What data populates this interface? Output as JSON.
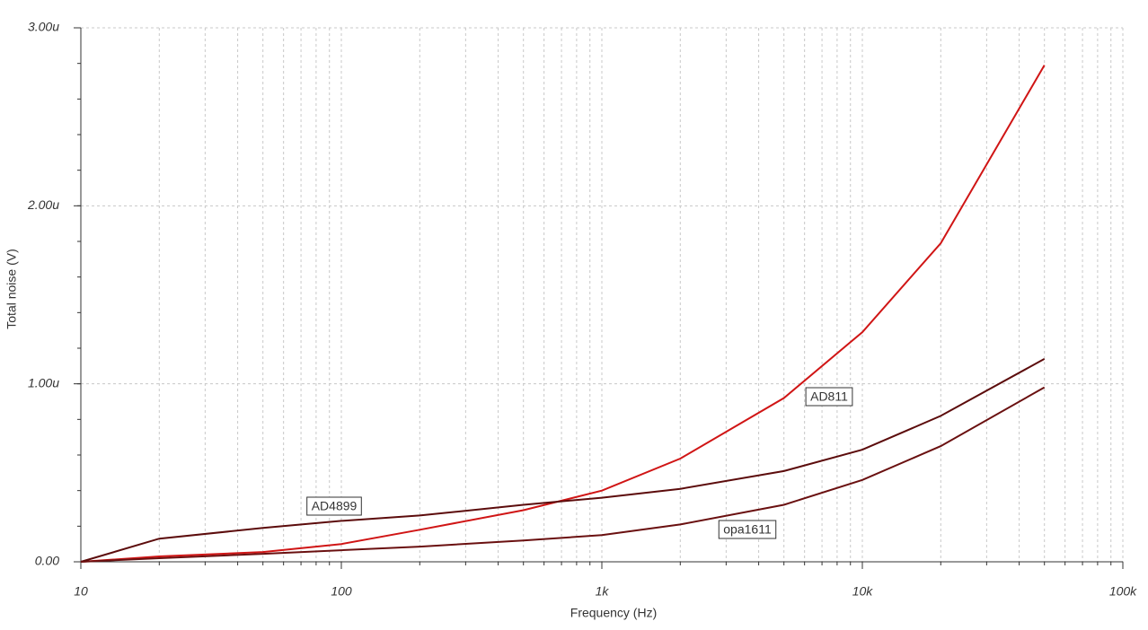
{
  "chart_data": {
    "type": "line",
    "x_label": "Frequency (Hz)",
    "y_label": "Total noise (V)",
    "log_x": true,
    "grid": true,
    "x": [
      10,
      20,
      50,
      100,
      200,
      500,
      1000,
      2000,
      5000,
      10000,
      20000,
      50000
    ],
    "series": [
      {
        "name": "AD811",
        "color": "#d01515",
        "values": [
          0,
          0.03,
          0.055,
          0.1,
          0.18,
          0.29,
          0.4,
          0.58,
          0.92,
          1.29,
          1.79,
          2.79
        ]
      },
      {
        "name": "AD4899",
        "color": "#5c0c0c",
        "values": [
          0,
          0.13,
          0.19,
          0.23,
          0.26,
          0.32,
          0.36,
          0.41,
          0.51,
          0.63,
          0.82,
          1.14
        ]
      },
      {
        "name": "opa1611",
        "color": "#6a1010",
        "values": [
          0,
          0.02,
          0.045,
          0.065,
          0.085,
          0.12,
          0.15,
          0.21,
          0.32,
          0.46,
          0.65,
          0.98
        ]
      }
    ],
    "xlim": [
      10,
      100000
    ],
    "xticks": [
      10,
      100,
      {
        "value": 1000,
        "label": "1k"
      },
      {
        "value": 10000,
        "label": "10k"
      },
      {
        "value": 100000,
        "label": "100k"
      }
    ],
    "ylim": [
      0,
      3
    ],
    "yticks": [
      {
        "value": 0,
        "label": "0.00"
      },
      {
        "value": 1,
        "label": "1.00u"
      },
      {
        "value": 2,
        "label": "2.00u"
      },
      {
        "value": 3,
        "label": "3.00u"
      }
    ]
  }
}
